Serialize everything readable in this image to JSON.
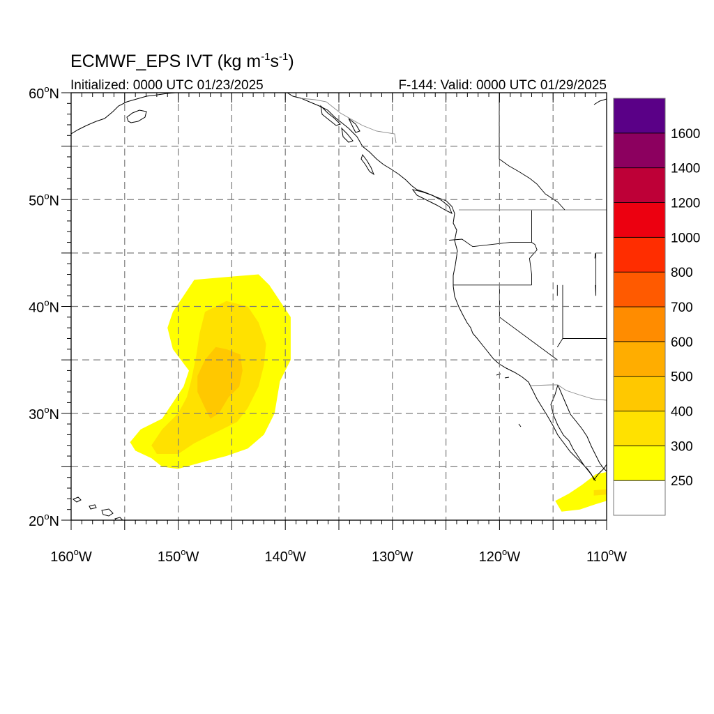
{
  "title": {
    "main_prefix": "ECMWF_EPS IVT (kg m",
    "main_exp1": "-1",
    "main_mid": "s",
    "main_exp2": "-1",
    "main_suffix": ")",
    "initialized": "Initialized: 0000 UTC 01/23/2025",
    "valid": "F-144: Valid: 0000 UTC 01/29/2025"
  },
  "axes": {
    "lat_labels": [
      {
        "lat": 60,
        "text": "60",
        "hemi": "N"
      },
      {
        "lat": 50,
        "text": "50",
        "hemi": "N"
      },
      {
        "lat": 40,
        "text": "40",
        "hemi": "N"
      },
      {
        "lat": 30,
        "text": "30",
        "hemi": "N"
      },
      {
        "lat": 20,
        "text": "20",
        "hemi": "N"
      }
    ],
    "lon_labels": [
      {
        "lon": -160,
        "text": "160",
        "hemi": "W"
      },
      {
        "lon": -150,
        "text": "150",
        "hemi": "W"
      },
      {
        "lon": -140,
        "text": "140",
        "hemi": "W"
      },
      {
        "lon": -130,
        "text": "130",
        "hemi": "W"
      },
      {
        "lon": -120,
        "text": "120",
        "hemi": "W"
      },
      {
        "lon": -110,
        "text": "110",
        "hemi": "W"
      }
    ],
    "lat_range": [
      20,
      60
    ],
    "lon_range": [
      -160,
      -110
    ],
    "grid_spacing_deg": 5,
    "degree_symbol": "o"
  },
  "colorbar": {
    "labels": [
      "250",
      "300",
      "400",
      "500",
      "600",
      "700",
      "800",
      "1000",
      "1200",
      "1400",
      "1600"
    ],
    "colors": [
      "#ffffff",
      "#ffff00",
      "#ffe100",
      "#ffc800",
      "#ffad00",
      "#ff8c00",
      "#ff5a00",
      "#ff2d00",
      "#ec0010",
      "#be0037",
      "#8c005f",
      "#5a0087"
    ]
  },
  "map_data": {
    "type": "map",
    "projection": "cylindrical-equidistant",
    "field": "IVT",
    "units": "kg m-1 s-1",
    "features": [
      "coastlines",
      "country-borders",
      "us-state-borders"
    ],
    "ivt_regions": [
      {
        "name": "central-pacific-plume",
        "level": ">=250",
        "polygon": [
          [
            -148.5,
            42.5
          ],
          [
            -145,
            42.8
          ],
          [
            -142.5,
            43
          ],
          [
            -141.5,
            42
          ],
          [
            -140.5,
            40.5
          ],
          [
            -139.5,
            39
          ],
          [
            -139.5,
            35
          ],
          [
            -140.5,
            33
          ],
          [
            -141,
            30
          ],
          [
            -142,
            28
          ],
          [
            -143.5,
            26.7
          ],
          [
            -145.5,
            26
          ],
          [
            -147.5,
            25.5
          ],
          [
            -150,
            24.8
          ],
          [
            -151.5,
            25
          ],
          [
            -152.5,
            25.8
          ],
          [
            -154,
            26.5
          ],
          [
            -154.5,
            27.3
          ],
          [
            -153.5,
            28.5
          ],
          [
            -151.5,
            29.5
          ],
          [
            -150.5,
            31
          ],
          [
            -149.5,
            32.5
          ],
          [
            -149,
            34
          ],
          [
            -150.5,
            36
          ],
          [
            -151,
            38
          ],
          [
            -150.5,
            39.5
          ],
          [
            -149.5,
            41
          ],
          [
            -148.5,
            42.5
          ]
        ]
      },
      {
        "name": "central-pacific-plume",
        "level": ">=300",
        "polygon": [
          [
            -147.5,
            39.5
          ],
          [
            -145.5,
            40.5
          ],
          [
            -143.5,
            40
          ],
          [
            -142.5,
            38.5
          ],
          [
            -141.8,
            36.5
          ],
          [
            -142,
            34.5
          ],
          [
            -142.5,
            32.5
          ],
          [
            -143.5,
            30.5
          ],
          [
            -144.5,
            29.2
          ],
          [
            -146.5,
            28.2
          ],
          [
            -148.5,
            27.2
          ],
          [
            -150,
            26.2
          ],
          [
            -152,
            26.2
          ],
          [
            -152.5,
            27
          ],
          [
            -151.5,
            28.5
          ],
          [
            -150,
            30
          ],
          [
            -149.2,
            31.5
          ],
          [
            -148.8,
            33
          ],
          [
            -148.3,
            35.5
          ],
          [
            -148,
            37.5
          ],
          [
            -147.5,
            39.5
          ]
        ]
      },
      {
        "name": "central-pacific-plume",
        "level": ">=400",
        "polygon": [
          [
            -146.5,
            36.2
          ],
          [
            -145.5,
            36
          ],
          [
            -144.2,
            35.5
          ],
          [
            -144,
            34
          ],
          [
            -144.3,
            32.5
          ],
          [
            -145.3,
            31.5
          ],
          [
            -146.2,
            30
          ],
          [
            -147,
            29.5
          ],
          [
            -147.5,
            30.5
          ],
          [
            -148.2,
            32
          ],
          [
            -148.2,
            33.5
          ],
          [
            -147.5,
            35
          ],
          [
            -146.5,
            36.2
          ]
        ]
      },
      {
        "name": "baja-feature",
        "level": ">=250",
        "polygon": [
          [
            -114.8,
            21.8
          ],
          [
            -113.5,
            22.5
          ],
          [
            -112.3,
            23.3
          ],
          [
            -111,
            24.3
          ],
          [
            -110,
            24.5
          ],
          [
            -110,
            21.8
          ],
          [
            -111,
            21.5
          ],
          [
            -112.5,
            21
          ],
          [
            -114.2,
            20.8
          ],
          [
            -114.8,
            21.8
          ]
        ]
      },
      {
        "name": "baja-feature",
        "level": ">=300",
        "polygon": [
          [
            -111.2,
            22.3
          ],
          [
            -110,
            22.4
          ],
          [
            -110,
            22.9
          ],
          [
            -111.2,
            22.8
          ],
          [
            -111.2,
            22.3
          ]
        ]
      }
    ],
    "state_lines": [
      [
        [
          -124.7,
          46.2
        ],
        [
          -123.5,
          46.3
        ],
        [
          -122.5,
          45.6
        ],
        [
          -119,
          46
        ],
        [
          -117,
          46
        ]
      ],
      [
        [
          -124.3,
          42
        ],
        [
          -117,
          42
        ]
      ],
      [
        [
          -117,
          49
        ],
        [
          -117,
          46
        ],
        [
          -116.7,
          45.8
        ],
        [
          -116.5,
          45.3
        ],
        [
          -117.2,
          44.5
        ],
        [
          -117,
          43
        ],
        [
          -117,
          42
        ]
      ],
      [
        [
          -120,
          42
        ],
        [
          -120,
          39
        ],
        [
          -114.6,
          35
        ]
      ],
      [
        [
          -114.1,
          42
        ],
        [
          -114.1,
          37
        ],
        [
          -114.6,
          36.2
        ]
      ],
      [
        [
          -114.6,
          42
        ],
        [
          -114.6,
          41
        ]
      ],
      [
        [
          -111,
          45
        ],
        [
          -111,
          41
        ],
        [
          -111.05,
          42
        ]
      ],
      [
        [
          -110,
          37
        ],
        [
          -114.1,
          37
        ]
      ],
      [
        [
          -111.05,
          45
        ],
        [
          -111.1,
          44.5
        ]
      ]
    ]
  }
}
